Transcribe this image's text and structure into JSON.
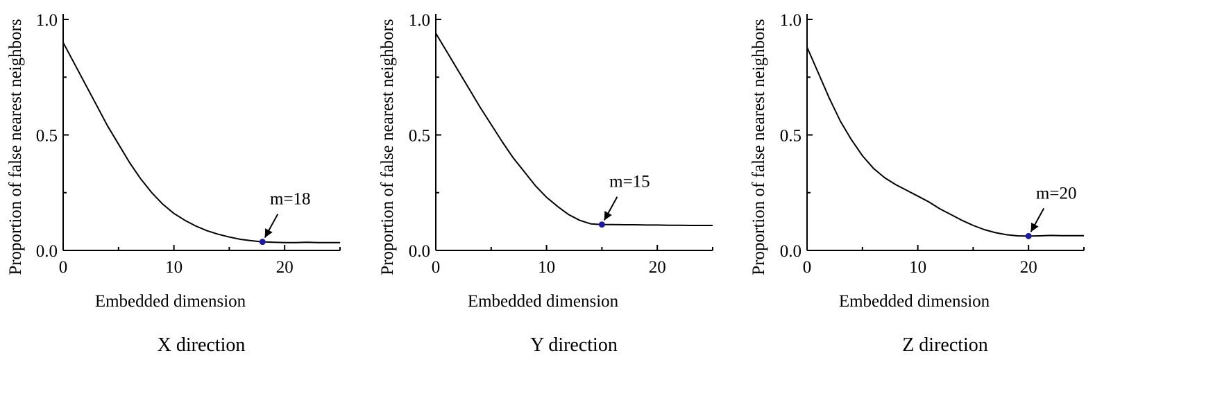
{
  "colors": {
    "line": "#000000",
    "marker": "#1a1aa6",
    "axis": "#000000"
  },
  "chart_data": [
    {
      "type": "line",
      "caption": "X direction",
      "xlabel": "Embedded dimension",
      "ylabel": "Proportion of false nearest neighbors",
      "xlim": [
        0,
        25
      ],
      "ylim": [
        0,
        1.0
      ],
      "xticks": [
        "0",
        "10",
        "20"
      ],
      "yticks": [
        "0.0",
        "0.5",
        "1.0"
      ],
      "grid": false,
      "series": [
        {
          "x": [
            0,
            1,
            2,
            3,
            4,
            5,
            6,
            7,
            8,
            9,
            10,
            11,
            12,
            13,
            14,
            15,
            16,
            17,
            18,
            19,
            20,
            21,
            22,
            23,
            24,
            25
          ],
          "values": [
            0.9,
            0.81,
            0.72,
            0.63,
            0.54,
            0.46,
            0.38,
            0.31,
            0.25,
            0.2,
            0.16,
            0.13,
            0.105,
            0.085,
            0.07,
            0.058,
            0.048,
            0.042,
            0.037,
            0.035,
            0.034,
            0.034,
            0.035,
            0.034,
            0.034,
            0.034
          ]
        }
      ],
      "highlight": {
        "x": 18,
        "y": 0.037,
        "label": "m=18"
      }
    },
    {
      "type": "line",
      "caption": "Y direction",
      "xlabel": "Embedded dimension",
      "ylabel": "Proportion of false nearest neighbors",
      "xlim": [
        0,
        25
      ],
      "ylim": [
        0,
        1.0
      ],
      "xticks": [
        "0",
        "10",
        "20"
      ],
      "yticks": [
        "0.0",
        "0.5",
        "1.0"
      ],
      "grid": false,
      "series": [
        {
          "x": [
            0,
            1,
            2,
            3,
            4,
            5,
            6,
            7,
            8,
            9,
            10,
            11,
            12,
            13,
            14,
            15,
            16,
            17,
            18,
            19,
            20,
            21,
            22,
            23,
            24,
            25
          ],
          "values": [
            0.94,
            0.86,
            0.78,
            0.7,
            0.62,
            0.545,
            0.47,
            0.4,
            0.34,
            0.28,
            0.23,
            0.19,
            0.155,
            0.13,
            0.115,
            0.112,
            0.112,
            0.111,
            0.111,
            0.11,
            0.11,
            0.109,
            0.109,
            0.108,
            0.108,
            0.108
          ]
        }
      ],
      "highlight": {
        "x": 15,
        "y": 0.112,
        "label": "m=15"
      }
    },
    {
      "type": "line",
      "caption": "Z direction",
      "xlabel": "Embedded dimension",
      "ylabel": "Proportion of false nearest neighbors",
      "xlim": [
        0,
        25
      ],
      "ylim": [
        0,
        1.0
      ],
      "xticks": [
        "0",
        "10",
        "20"
      ],
      "yticks": [
        "0.0",
        "0.5",
        "1.0"
      ],
      "grid": false,
      "series": [
        {
          "x": [
            0,
            1,
            2,
            3,
            4,
            5,
            6,
            7,
            8,
            9,
            10,
            11,
            12,
            13,
            14,
            15,
            16,
            17,
            18,
            19,
            20,
            21,
            22,
            23,
            24,
            25
          ],
          "values": [
            0.88,
            0.77,
            0.66,
            0.56,
            0.48,
            0.41,
            0.355,
            0.315,
            0.285,
            0.26,
            0.235,
            0.21,
            0.18,
            0.155,
            0.13,
            0.108,
            0.09,
            0.077,
            0.068,
            0.063,
            0.062,
            0.063,
            0.065,
            0.064,
            0.064,
            0.064
          ]
        }
      ],
      "highlight": {
        "x": 20,
        "y": 0.062,
        "label": "m=20"
      }
    }
  ]
}
